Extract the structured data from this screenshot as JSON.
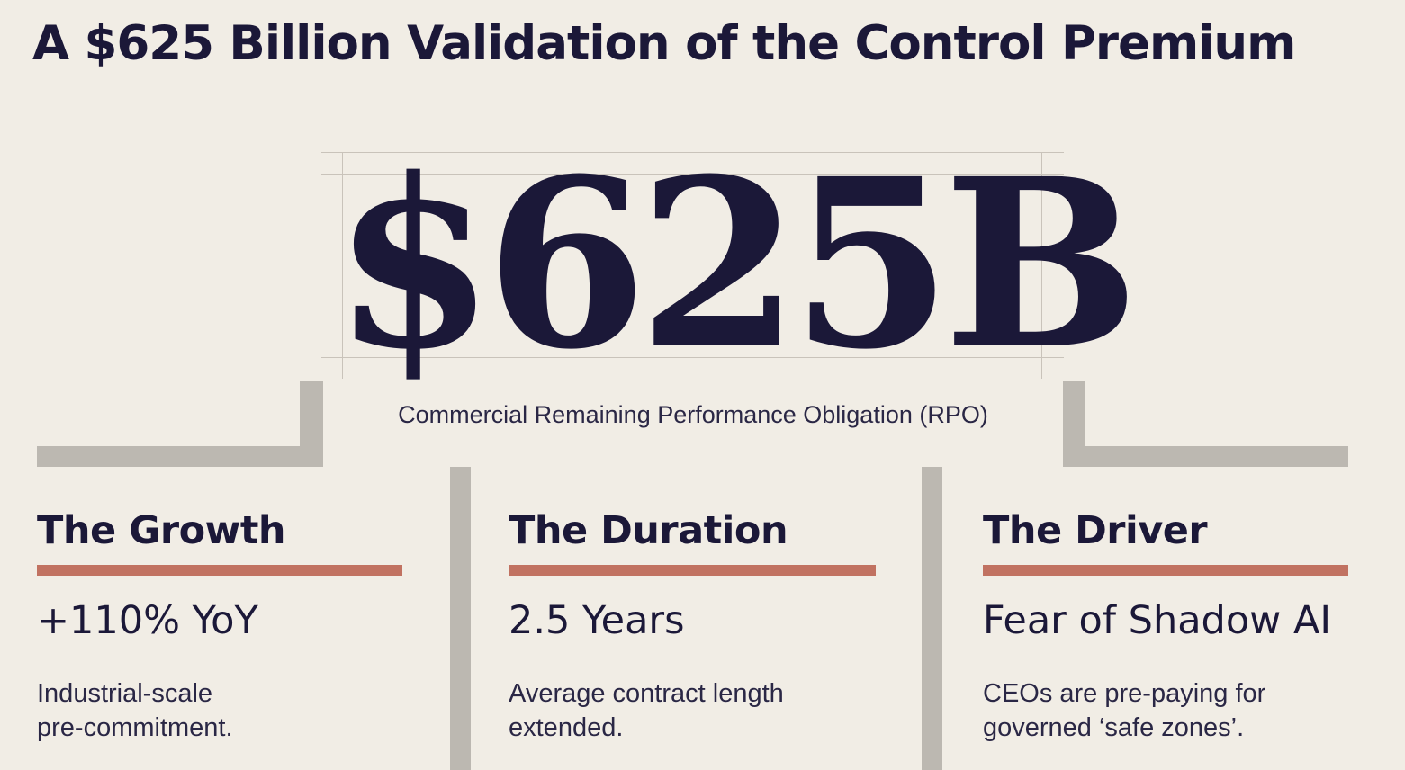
{
  "title": "A $625 Billion Validation of the Control Premium",
  "hero": {
    "value": "$625B",
    "caption": "Commercial Remaining Performance Obligation (RPO)"
  },
  "columns": [
    {
      "heading": "The Growth",
      "value": "+110% YoY",
      "description_lines": [
        "Industrial-scale",
        "pre-commitment."
      ]
    },
    {
      "heading": "The Duration",
      "value": "2.5 Years",
      "description_lines": [
        "Average contract length",
        "extended."
      ]
    },
    {
      "heading": "The Driver",
      "value": "Fear of Shadow AI",
      "description_lines": [
        "CEOs are pre-paying for",
        "governed ‘safe zones’."
      ]
    }
  ],
  "colors": {
    "background": "#f1ede5",
    "ink": "#1b1838",
    "accent": "#c17261",
    "connector": "#bcb8b1"
  }
}
